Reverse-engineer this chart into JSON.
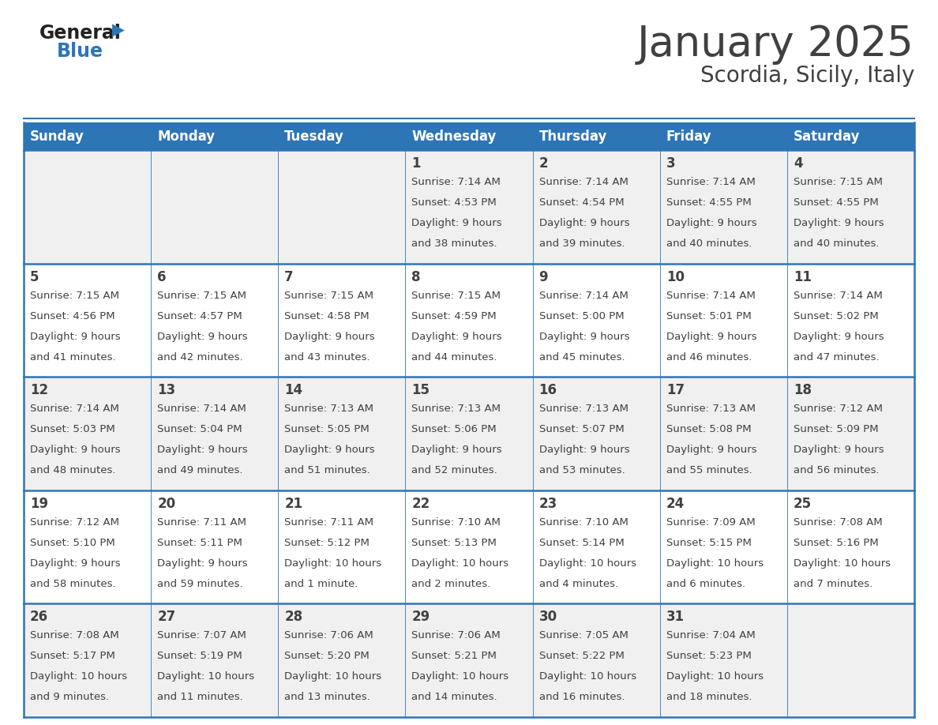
{
  "title": "January 2025",
  "subtitle": "Scordia, Sicily, Italy",
  "header_color": "#2E75B6",
  "header_text_color": "#FFFFFF",
  "days_of_week": [
    "Sunday",
    "Monday",
    "Tuesday",
    "Wednesday",
    "Thursday",
    "Friday",
    "Saturday"
  ],
  "bg_color": "#FFFFFF",
  "cell_bg_even": "#F0F0F0",
  "cell_bg_odd": "#FFFFFF",
  "border_color": "#2E75B6",
  "text_color": "#404040",
  "calendar": [
    [
      {
        "day": "",
        "sunrise": "",
        "sunset": "",
        "daylight": ""
      },
      {
        "day": "",
        "sunrise": "",
        "sunset": "",
        "daylight": ""
      },
      {
        "day": "",
        "sunrise": "",
        "sunset": "",
        "daylight": ""
      },
      {
        "day": "1",
        "sunrise": "7:14 AM",
        "sunset": "4:53 PM",
        "daylight": "9 hours\nand 38 minutes."
      },
      {
        "day": "2",
        "sunrise": "7:14 AM",
        "sunset": "4:54 PM",
        "daylight": "9 hours\nand 39 minutes."
      },
      {
        "day": "3",
        "sunrise": "7:14 AM",
        "sunset": "4:55 PM",
        "daylight": "9 hours\nand 40 minutes."
      },
      {
        "day": "4",
        "sunrise": "7:15 AM",
        "sunset": "4:55 PM",
        "daylight": "9 hours\nand 40 minutes."
      }
    ],
    [
      {
        "day": "5",
        "sunrise": "7:15 AM",
        "sunset": "4:56 PM",
        "daylight": "9 hours\nand 41 minutes."
      },
      {
        "day": "6",
        "sunrise": "7:15 AM",
        "sunset": "4:57 PM",
        "daylight": "9 hours\nand 42 minutes."
      },
      {
        "day": "7",
        "sunrise": "7:15 AM",
        "sunset": "4:58 PM",
        "daylight": "9 hours\nand 43 minutes."
      },
      {
        "day": "8",
        "sunrise": "7:15 AM",
        "sunset": "4:59 PM",
        "daylight": "9 hours\nand 44 minutes."
      },
      {
        "day": "9",
        "sunrise": "7:14 AM",
        "sunset": "5:00 PM",
        "daylight": "9 hours\nand 45 minutes."
      },
      {
        "day": "10",
        "sunrise": "7:14 AM",
        "sunset": "5:01 PM",
        "daylight": "9 hours\nand 46 minutes."
      },
      {
        "day": "11",
        "sunrise": "7:14 AM",
        "sunset": "5:02 PM",
        "daylight": "9 hours\nand 47 minutes."
      }
    ],
    [
      {
        "day": "12",
        "sunrise": "7:14 AM",
        "sunset": "5:03 PM",
        "daylight": "9 hours\nand 48 minutes."
      },
      {
        "day": "13",
        "sunrise": "7:14 AM",
        "sunset": "5:04 PM",
        "daylight": "9 hours\nand 49 minutes."
      },
      {
        "day": "14",
        "sunrise": "7:13 AM",
        "sunset": "5:05 PM",
        "daylight": "9 hours\nand 51 minutes."
      },
      {
        "day": "15",
        "sunrise": "7:13 AM",
        "sunset": "5:06 PM",
        "daylight": "9 hours\nand 52 minutes."
      },
      {
        "day": "16",
        "sunrise": "7:13 AM",
        "sunset": "5:07 PM",
        "daylight": "9 hours\nand 53 minutes."
      },
      {
        "day": "17",
        "sunrise": "7:13 AM",
        "sunset": "5:08 PM",
        "daylight": "9 hours\nand 55 minutes."
      },
      {
        "day": "18",
        "sunrise": "7:12 AM",
        "sunset": "5:09 PM",
        "daylight": "9 hours\nand 56 minutes."
      }
    ],
    [
      {
        "day": "19",
        "sunrise": "7:12 AM",
        "sunset": "5:10 PM",
        "daylight": "9 hours\nand 58 minutes."
      },
      {
        "day": "20",
        "sunrise": "7:11 AM",
        "sunset": "5:11 PM",
        "daylight": "9 hours\nand 59 minutes."
      },
      {
        "day": "21",
        "sunrise": "7:11 AM",
        "sunset": "5:12 PM",
        "daylight": "10 hours\nand 1 minute."
      },
      {
        "day": "22",
        "sunrise": "7:10 AM",
        "sunset": "5:13 PM",
        "daylight": "10 hours\nand 2 minutes."
      },
      {
        "day": "23",
        "sunrise": "7:10 AM",
        "sunset": "5:14 PM",
        "daylight": "10 hours\nand 4 minutes."
      },
      {
        "day": "24",
        "sunrise": "7:09 AM",
        "sunset": "5:15 PM",
        "daylight": "10 hours\nand 6 minutes."
      },
      {
        "day": "25",
        "sunrise": "7:08 AM",
        "sunset": "5:16 PM",
        "daylight": "10 hours\nand 7 minutes."
      }
    ],
    [
      {
        "day": "26",
        "sunrise": "7:08 AM",
        "sunset": "5:17 PM",
        "daylight": "10 hours\nand 9 minutes."
      },
      {
        "day": "27",
        "sunrise": "7:07 AM",
        "sunset": "5:19 PM",
        "daylight": "10 hours\nand 11 minutes."
      },
      {
        "day": "28",
        "sunrise": "7:06 AM",
        "sunset": "5:20 PM",
        "daylight": "10 hours\nand 13 minutes."
      },
      {
        "day": "29",
        "sunrise": "7:06 AM",
        "sunset": "5:21 PM",
        "daylight": "10 hours\nand 14 minutes."
      },
      {
        "day": "30",
        "sunrise": "7:05 AM",
        "sunset": "5:22 PM",
        "daylight": "10 hours\nand 16 minutes."
      },
      {
        "day": "31",
        "sunrise": "7:04 AM",
        "sunset": "5:23 PM",
        "daylight": "10 hours\nand 18 minutes."
      },
      {
        "day": "",
        "sunrise": "",
        "sunset": "",
        "daylight": ""
      }
    ]
  ],
  "logo_general_color": "#222222",
  "logo_blue_color": "#2E75B6",
  "title_fontsize": 38,
  "subtitle_fontsize": 20,
  "header_fontsize": 12,
  "day_num_fontsize": 12,
  "cell_text_fontsize": 9.5
}
